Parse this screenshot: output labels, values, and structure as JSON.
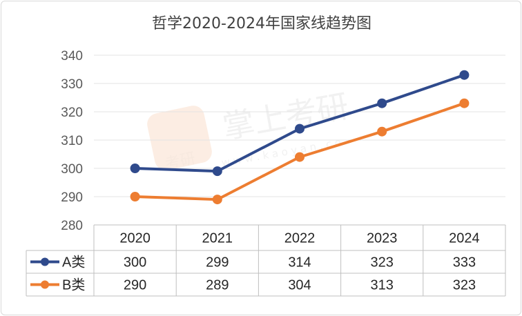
{
  "watermark": {
    "brand": "掌上考研",
    "url": "w w w . k a o y a n . c o",
    "logo_text": "考研"
  },
  "chart_data": {
    "type": "line",
    "title": "哲学2020-2024年国家线趋势图",
    "categories": [
      "2020",
      "2021",
      "2022",
      "2023",
      "2024"
    ],
    "ylim": [
      280,
      340
    ],
    "yticks": [
      280,
      290,
      300,
      310,
      320,
      330,
      340
    ],
    "grid": true,
    "legend": "data-table-left",
    "series": [
      {
        "name": "A类",
        "values": [
          300,
          299,
          314,
          323,
          333
        ],
        "color": "#2f4a8c"
      },
      {
        "name": "B类",
        "values": [
          290,
          289,
          304,
          313,
          323
        ],
        "color": "#ed7d31"
      }
    ]
  }
}
